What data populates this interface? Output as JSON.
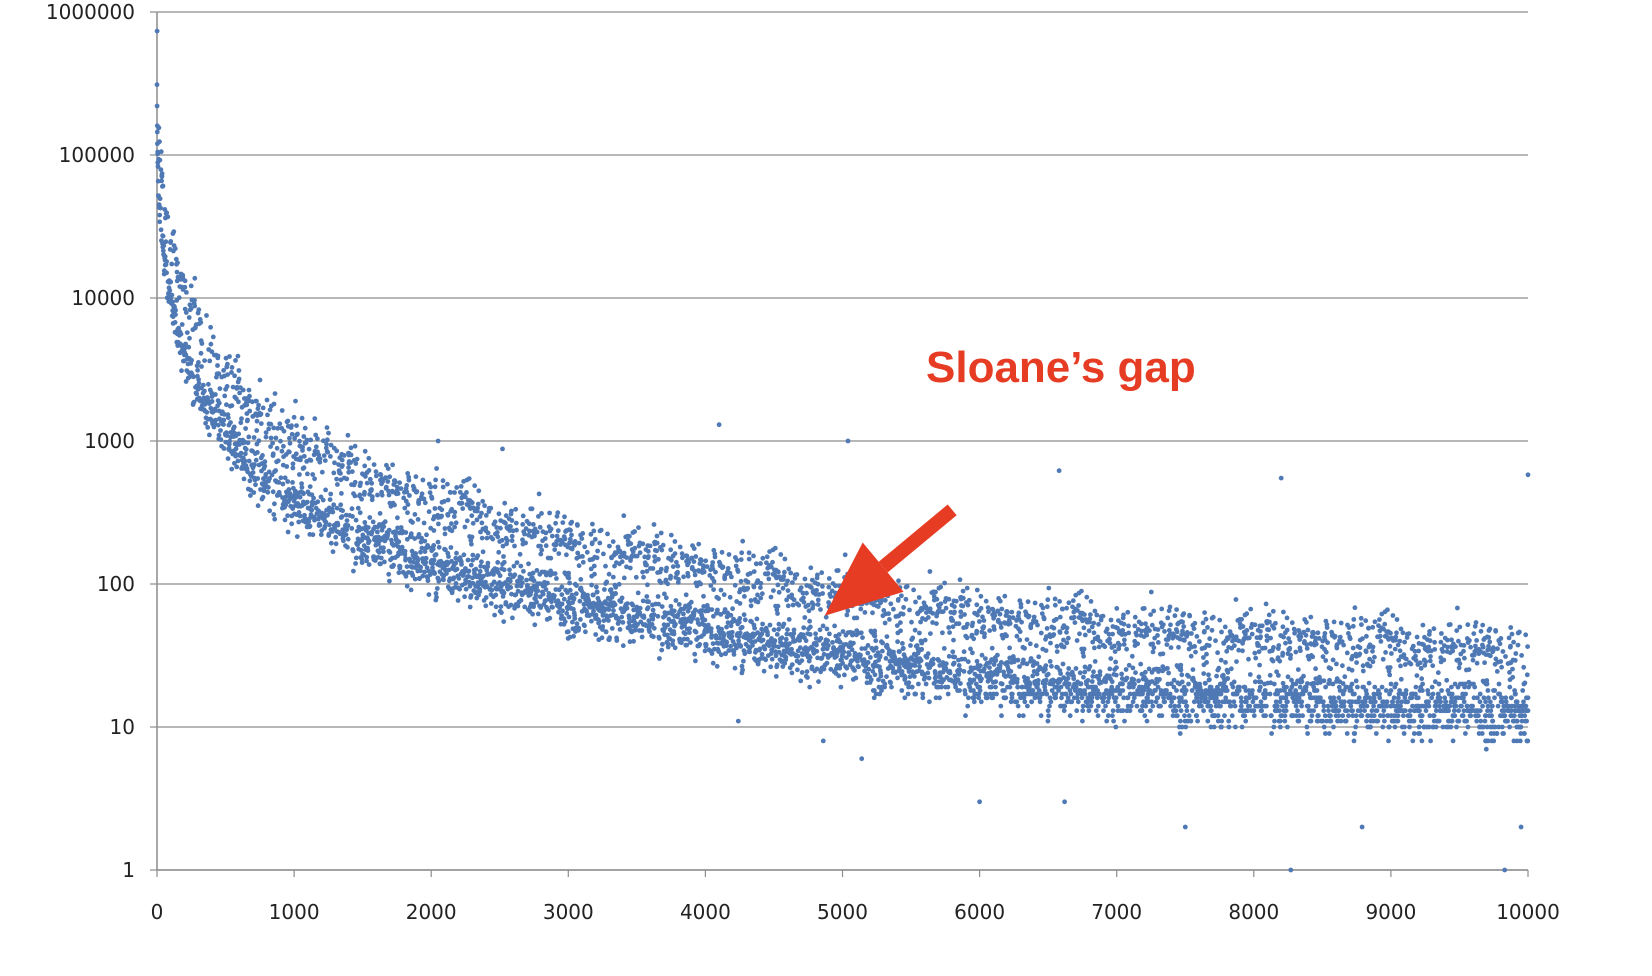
{
  "chart_data": {
    "type": "scatter",
    "title": "",
    "xlabel": "",
    "ylabel": "",
    "y_scale": "log",
    "xlim": [
      0,
      10000
    ],
    "ylim": [
      1,
      1000000
    ],
    "x_ticks": [
      "0",
      "1000",
      "2000",
      "3000",
      "4000",
      "5000",
      "6000",
      "7000",
      "8000",
      "9000",
      "10000"
    ],
    "y_ticks": [
      "1",
      "10",
      "100",
      "1000",
      "10000",
      "100000",
      "1000000"
    ],
    "grid": "horizontal",
    "legend": "none",
    "marker_color": "#4f79b5",
    "series": [
      {
        "description_of_trend": "dense cloud decaying from ~300000 near x=0 to ~10-30 at x=10000; two bands (upper ~2-3x above lower)",
        "points": [
          [
            0,
            310000
          ],
          [
            1,
            220000
          ],
          [
            2,
            160000
          ],
          [
            3,
            120000
          ],
          [
            5,
            105000
          ],
          [
            10,
            52000
          ],
          [
            15,
            45000
          ],
          [
            20,
            38000
          ],
          [
            30,
            30000
          ],
          [
            40,
            24000
          ],
          [
            50,
            20000
          ],
          [
            60,
            17000
          ],
          [
            70,
            15000
          ],
          [
            80,
            13000
          ],
          [
            100,
            10000
          ],
          [
            120,
            8000
          ],
          [
            150,
            6000
          ],
          [
            200,
            4000
          ],
          [
            250,
            3000
          ],
          [
            300,
            2300
          ],
          [
            400,
            1600
          ],
          [
            500,
            1100
          ],
          [
            600,
            800
          ],
          [
            700,
            650
          ],
          [
            800,
            520
          ],
          [
            1000,
            380
          ],
          [
            1200,
            300
          ],
          [
            1500,
            210
          ],
          [
            2000,
            140
          ],
          [
            2500,
            100
          ],
          [
            3000,
            75
          ],
          [
            3500,
            60
          ],
          [
            4000,
            48
          ],
          [
            4500,
            38
          ],
          [
            5000,
            32
          ],
          [
            5500,
            27
          ],
          [
            6000,
            22
          ],
          [
            7000,
            18
          ],
          [
            8000,
            16
          ],
          [
            9000,
            14
          ],
          [
            10000,
            13
          ]
        ]
      }
    ],
    "outliers": [
      [
        500,
        2300
      ],
      [
        720,
        1900
      ],
      [
        1010,
        1900
      ],
      [
        1400,
        700
      ],
      [
        2050,
        1000
      ],
      [
        2520,
        880
      ],
      [
        4100,
        1300
      ],
      [
        5040,
        1000
      ],
      [
        6580,
        620
      ],
      [
        8200,
        550
      ],
      [
        10000,
        580
      ],
      [
        6000,
        3
      ],
      [
        6620,
        3
      ],
      [
        7500,
        2
      ],
      [
        8270,
        1
      ],
      [
        8790,
        2
      ],
      [
        9830,
        1
      ],
      [
        9950,
        2
      ],
      [
        5140,
        6
      ],
      [
        4860,
        8
      ],
      [
        4240,
        11
      ]
    ],
    "annotations": [
      {
        "text": "Sloane’s gap",
        "color": "#e63c24",
        "arrow_tail": [
          5800,
          330
        ],
        "arrow_head": [
          4870,
          60
        ]
      }
    ]
  }
}
